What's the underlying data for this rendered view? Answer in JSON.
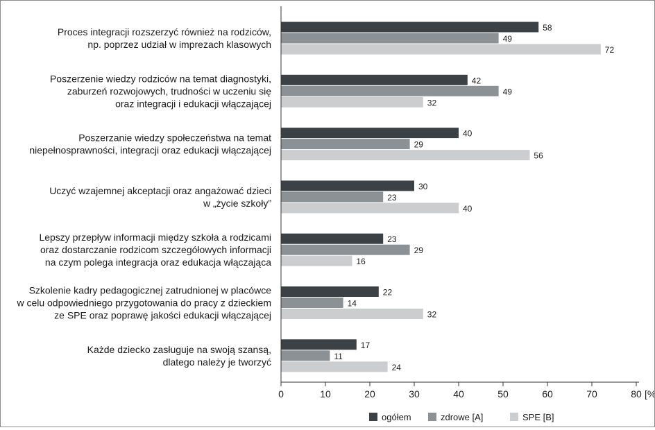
{
  "chart_data": {
    "type": "bar",
    "orientation": "horizontal",
    "categories": [
      [
        "Proces integracji rozszerzyć również na rodziców,",
        "np. poprzez udział w imprezach klasowych"
      ],
      [
        "Poszerzenie wiedzy rodziców na temat diagnostyki,",
        "zaburzeń rozwojowych, trudności w uczeniu się",
        "oraz integracji i edukacji włączającej"
      ],
      [
        "Poszerzanie wiedzy społeczeństwa na temat",
        "niepełnosprawności, integracji oraz edukacji włączającej"
      ],
      [
        "Uczyć wzajemnej akceptacji oraz angażować dzieci",
        "w „życie szkoły”"
      ],
      [
        "Lepszy przepływ informacji między szkoła a rodzicami",
        "oraz dostarczanie rodzicom szczegółowych informacji",
        "na czym polega integracja  oraz edukacja włączająca"
      ],
      [
        "Szkolenie kadry pedagogicznej zatrudnionej w placówce",
        "w celu odpowiedniego przygotowania do pracy z dzieckiem",
        "ze SPE oraz poprawę jakości edukacji włączającej"
      ],
      [
        "Każde dziecko zasługuje na swoją szansą,",
        "dlatego należy je tworzyć"
      ]
    ],
    "series": [
      {
        "name": "ogółem",
        "color": "#3c4146",
        "values": [
          58,
          42,
          40,
          30,
          23,
          22,
          17
        ]
      },
      {
        "name": "zdrowe [A]",
        "color": "#8c9196",
        "values": [
          49,
          49,
          29,
          23,
          29,
          14,
          11
        ]
      },
      {
        "name": "SPE [B]",
        "color": "#cbcdcf",
        "values": [
          72,
          32,
          56,
          40,
          16,
          32,
          24
        ]
      }
    ],
    "xlim": [
      0,
      80
    ],
    "xticks": [
      "0",
      "10",
      "20",
      "30",
      "40",
      "50",
      "60",
      "70",
      "80"
    ],
    "xunit": "[%]",
    "grid": false,
    "legend": "bottom"
  }
}
